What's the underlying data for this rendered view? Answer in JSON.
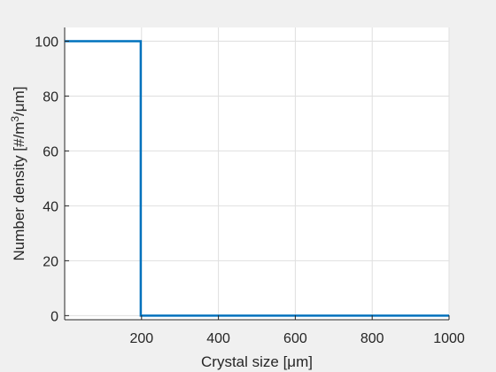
{
  "chart_data": {
    "type": "line",
    "title": "",
    "xlabel_parts": [
      "Crystal size [",
      "μ",
      "m]"
    ],
    "ylabel_parts": [
      "Number density [#/m",
      "3",
      "/",
      "μ",
      "m]"
    ],
    "xlim": [
      0,
      1000
    ],
    "ylim": [
      -1.5,
      105
    ],
    "x_ticks": [
      200,
      400,
      600,
      800,
      1000
    ],
    "x_tick_labels": [
      "200",
      "400",
      "600",
      "800",
      "1000"
    ],
    "y_ticks": [
      0,
      20,
      40,
      60,
      80,
      100
    ],
    "y_tick_labels": [
      "0",
      "20",
      "40",
      "60",
      "80",
      "100"
    ],
    "grid": true,
    "series": [
      {
        "color": "#0072bd",
        "x": [
          0,
          198,
          198,
          1000
        ],
        "y": [
          100,
          100,
          0,
          0
        ]
      }
    ]
  }
}
